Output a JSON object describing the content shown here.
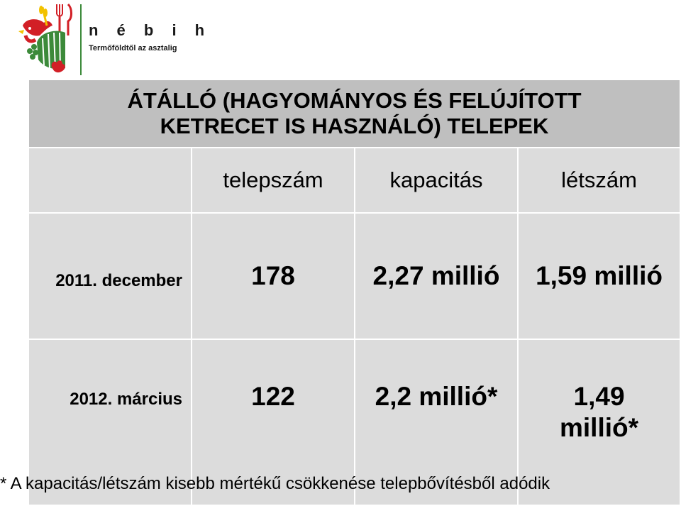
{
  "logo": {
    "name": "n é b i h",
    "tagline": "Termőföldtől az asztalig",
    "colors": {
      "red": "#d21f26",
      "green": "#3c8a3a",
      "yellow": "#f2c200"
    }
  },
  "table": {
    "title_line1": "ÁTÁLLÓ  (HAGYOMÁNYOS ÉS FELÚJÍTOTT",
    "title_line2": "KETRECET IS HASZNÁLÓ) TELEPEK",
    "headers": [
      "telepszám",
      "kapacitás",
      "létszám"
    ],
    "rows": [
      {
        "date": "2011. december",
        "telepszam": "178",
        "kapacitas": "2,27 millió",
        "letszam": "1,59 millió"
      },
      {
        "date": "2012. március",
        "telepszam": "122",
        "kapacitas": "2,2 millió*",
        "letszam_line1": "1,49",
        "letszam_line2": "millió*"
      }
    ]
  },
  "footnote": "* A kapacitás/létszám kisebb mértékű csökkenése telepbővítésből adódik"
}
